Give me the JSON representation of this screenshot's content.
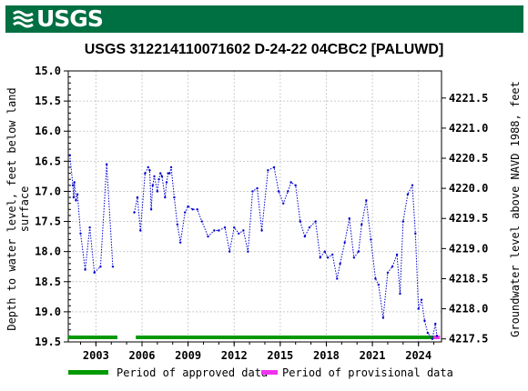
{
  "brand": {
    "logo_text": "USGS",
    "banner_color": "#006f41"
  },
  "chart_data": {
    "type": "line",
    "title": "USGS 312214110071602 D-24-22 04CBC2 [PALUWD]",
    "ylabel_left_line1": "Depth to water level, feet below land",
    "ylabel_left_line2": "surface",
    "ylabel_right": "Groundwater level above NAVD 1988, feet",
    "x_tick_labels": [
      "2003",
      "2006",
      "2009",
      "2012",
      "2015",
      "2018",
      "2021",
      "2024"
    ],
    "x_ticks": [
      2003,
      2006,
      2009,
      2012,
      2015,
      2018,
      2021,
      2024
    ],
    "xlim": [
      2001.2,
      2025.5
    ],
    "y_left_ticks": [
      15.0,
      15.5,
      16.0,
      16.5,
      17.0,
      17.5,
      18.0,
      18.5,
      19.0,
      19.5
    ],
    "y_left_tick_labels": [
      "15.0",
      "15.5",
      "16.0",
      "16.5",
      "17.0",
      "17.5",
      "18.0",
      "18.5",
      "19.0",
      "19.5"
    ],
    "ylim_left": [
      15.0,
      19.5
    ],
    "y_right_ticks": [
      4221.5,
      4221.0,
      4220.5,
      4220.0,
      4219.5,
      4219.0,
      4218.5,
      4218.0,
      4217.5
    ],
    "y_right_tick_labels": [
      "4221.5",
      "4221.0",
      "4220.5",
      "4220.0",
      "4219.5",
      "4219.0",
      "4218.5",
      "4218.0",
      "4217.5"
    ],
    "ylim_right": [
      4221.95,
      4217.45
    ],
    "grid": true,
    "line_color": "#0000cc",
    "series": [
      {
        "x": [
          2001.3,
          2001.5,
          2001.55,
          2001.6,
          2001.7,
          2001.8,
          2002.0,
          2002.3,
          2002.6,
          2002.9,
          2003.3,
          2003.7,
          2004.1,
          2005.5,
          2005.7,
          2005.9,
          2006.2,
          2006.4,
          2006.5,
          2006.6,
          2006.7,
          2006.8,
          2007.0,
          2007.1,
          2007.2,
          2007.3,
          2007.5,
          2007.6,
          2007.7,
          2007.8,
          2007.9,
          2008.1,
          2008.3,
          2008.5,
          2008.8,
          2009.0,
          2009.3,
          2009.6,
          2009.9,
          2010.3,
          2010.7,
          2011.0,
          2011.4,
          2011.7,
          2012.0,
          2012.3,
          2012.6,
          2012.9,
          2013.2,
          2013.5,
          2013.8,
          2014.2,
          2014.6,
          2014.9,
          2015.2,
          2015.5,
          2015.7,
          2016.0,
          2016.3,
          2016.6,
          2016.9,
          2017.3,
          2017.6,
          2017.9,
          2018.1,
          2018.4,
          2018.7,
          2018.9,
          2019.2,
          2019.5,
          2019.8,
          2020.1,
          2020.3,
          2020.6,
          2020.9,
          2021.2,
          2021.4,
          2021.7,
          2022.0,
          2022.3,
          2022.6,
          2022.8,
          2023.0,
          2023.3,
          2023.6,
          2023.8,
          2024.0,
          2024.2,
          2024.4,
          2024.6,
          2024.9,
          2025.1,
          2025.2
        ],
        "y": [
          16.4,
          16.9,
          17.1,
          16.85,
          17.15,
          17.05,
          17.7,
          18.3,
          17.6,
          18.35,
          18.25,
          16.55,
          18.25,
          17.35,
          17.1,
          17.65,
          16.7,
          16.6,
          16.65,
          17.3,
          16.9,
          16.75,
          17.0,
          16.8,
          16.7,
          16.75,
          17.1,
          16.85,
          16.7,
          16.7,
          16.6,
          17.1,
          17.55,
          17.85,
          17.35,
          17.25,
          17.3,
          17.3,
          17.5,
          17.75,
          17.65,
          17.65,
          17.6,
          18.0,
          17.6,
          17.7,
          17.65,
          18.0,
          17.0,
          16.95,
          17.65,
          16.65,
          16.6,
          17.0,
          17.2,
          17.0,
          16.85,
          16.9,
          17.5,
          17.75,
          17.6,
          17.5,
          18.1,
          18.0,
          18.1,
          18.05,
          18.45,
          18.2,
          17.85,
          17.45,
          18.1,
          18.0,
          17.55,
          17.15,
          17.8,
          18.45,
          18.55,
          19.1,
          18.35,
          18.25,
          18.05,
          18.7,
          17.5,
          17.05,
          16.9,
          17.7,
          18.95,
          18.8,
          19.15,
          19.35,
          19.45,
          19.2,
          19.4
        ]
      }
    ],
    "approved_periods": [
      [
        2001.2,
        2004.4
      ],
      [
        2005.6,
        2025.0
      ]
    ],
    "provisional_periods": [
      [
        2025.0,
        2025.4
      ]
    ],
    "approved_color": "#009900",
    "provisional_color": "#ee33ee",
    "legend": [
      {
        "label": "Period of approved data",
        "color": "#009900"
      },
      {
        "label": "Period of provisional data",
        "color": "#ee33ee"
      }
    ],
    "legend_placement": "bottom"
  }
}
